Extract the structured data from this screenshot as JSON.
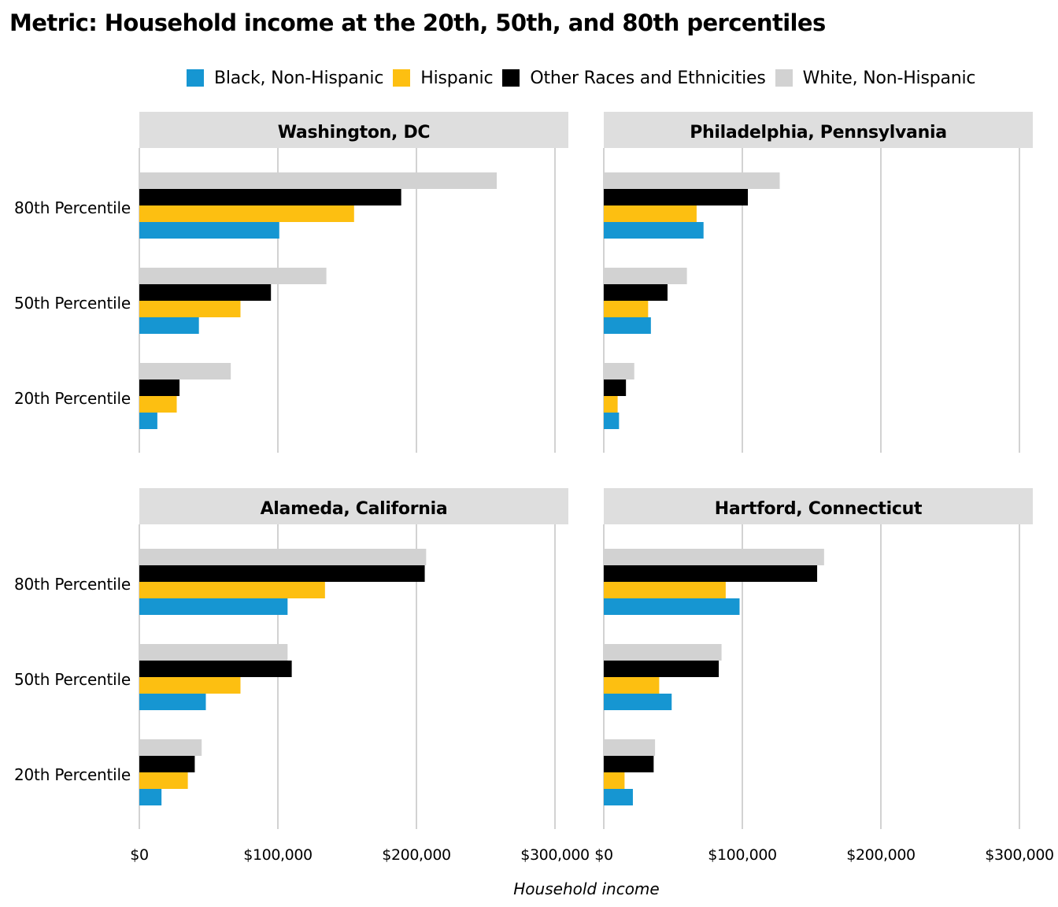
{
  "chart_data": {
    "type": "bar",
    "orientation": "horizontal",
    "title": "Metric: Household income at the 20th, 50th, and 80th percentiles",
    "xlabel": "Household income",
    "xlim": [
      0,
      300000
    ],
    "xticks": [
      "$0",
      "$100,000",
      "$200,000",
      "$300,000"
    ],
    "grid": true,
    "legend_position": "top",
    "categories": [
      "80th Percentile",
      "50th Percentile",
      "20th Percentile"
    ],
    "series_info": [
      {
        "name": "Black, Non-Hispanic",
        "color": "#1696d2"
      },
      {
        "name": "Hispanic",
        "color": "#fdbf11"
      },
      {
        "name": "Other Races and Ethnicities",
        "color": "#000000"
      },
      {
        "name": "White, Non-Hispanic",
        "color": "#d2d2d2"
      }
    ],
    "panels": [
      {
        "title": "Washington, DC",
        "values": {
          "Black, Non-Hispanic": [
            101000,
            43000,
            13000
          ],
          "Hispanic": [
            155000,
            73000,
            27000
          ],
          "Other Races and Ethnicities": [
            189000,
            95000,
            29000
          ],
          "White, Non-Hispanic": [
            258000,
            135000,
            66000
          ]
        }
      },
      {
        "title": "Philadelphia, Pennsylvania",
        "values": {
          "Black, Non-Hispanic": [
            72000,
            34000,
            11000
          ],
          "Hispanic": [
            67000,
            32000,
            10000
          ],
          "Other Races and Ethnicities": [
            104000,
            46000,
            16000
          ],
          "White, Non-Hispanic": [
            127000,
            60000,
            22000
          ]
        }
      },
      {
        "title": "Alameda, California",
        "values": {
          "Black, Non-Hispanic": [
            107000,
            48000,
            16000
          ],
          "Hispanic": [
            134000,
            73000,
            35000
          ],
          "Other Races and Ethnicities": [
            206000,
            110000,
            40000
          ],
          "White, Non-Hispanic": [
            207000,
            107000,
            45000
          ]
        }
      },
      {
        "title": "Hartford, Connecticut",
        "values": {
          "Black, Non-Hispanic": [
            98000,
            49000,
            21000
          ],
          "Hispanic": [
            88000,
            40000,
            15000
          ],
          "Other Races and Ethnicities": [
            154000,
            83000,
            36000
          ],
          "White, Non-Hispanic": [
            159000,
            85000,
            37000
          ]
        }
      }
    ]
  }
}
